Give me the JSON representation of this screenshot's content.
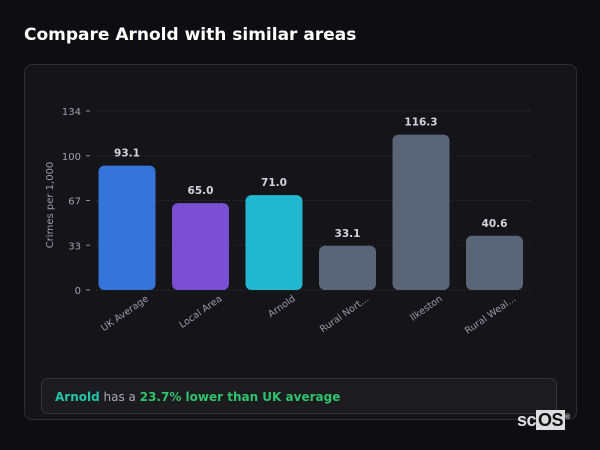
{
  "title": "Compare Arnold with similar areas",
  "chart_data": {
    "type": "bar",
    "ylabel": "Crimes per 1,000",
    "ylim": [
      0,
      134
    ],
    "yticks": [
      "0",
      "33",
      "67",
      "100",
      "134"
    ],
    "ytick_values": [
      0,
      33.5,
      67,
      100.5,
      134
    ],
    "grid": true,
    "categories": [
      "UK Average",
      "Local Area",
      "Arnold",
      "Rural Nort...",
      "Ilkeston",
      "Rural Weal..."
    ],
    "values": [
      93.1,
      65.0,
      71.0,
      33.1,
      116.3,
      40.6
    ],
    "labels": [
      "93.1",
      "65.0",
      "71.0",
      "33.1",
      "116.3",
      "40.6"
    ],
    "colors": [
      "#3674d9",
      "#7a4fd3",
      "#22b8d0",
      "#5b6578",
      "#5b6578",
      "#5b6578"
    ]
  },
  "summary": {
    "area": "Arnold",
    "middle": " has a ",
    "comparison": "23.7% lower than UK average"
  },
  "logo": {
    "text_a": "sc",
    "text_b": "OS",
    "mark": "®"
  }
}
